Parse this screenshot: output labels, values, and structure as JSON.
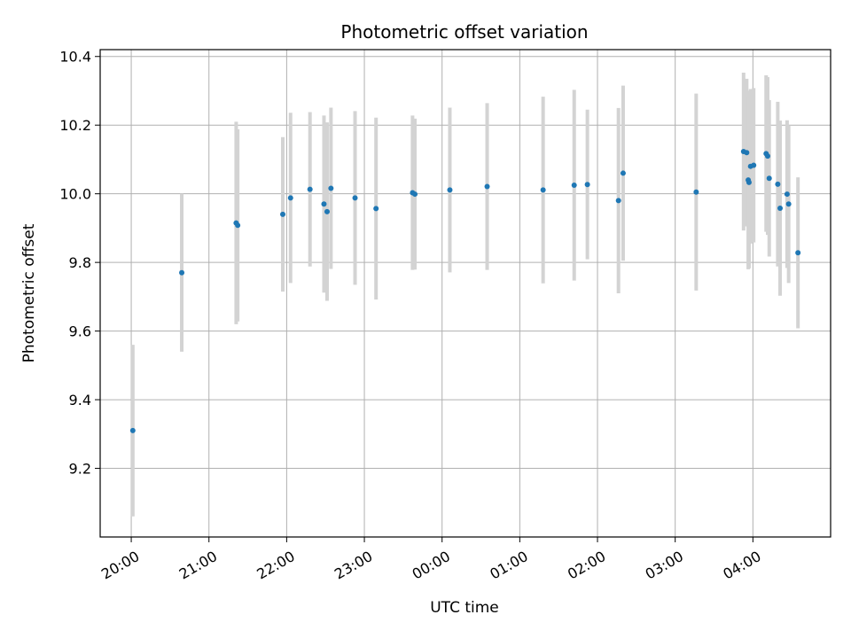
{
  "chart_data": {
    "type": "scatter",
    "title": "Photometric offset variation",
    "xlabel": "UTC time",
    "ylabel": "Photometric offset",
    "x_ticks": [
      "20:00",
      "21:00",
      "22:00",
      "23:00",
      "00:00",
      "01:00",
      "02:00",
      "03:00",
      "04:00"
    ],
    "x_range_hours": [
      19.6,
      29.0
    ],
    "y_ticks": [
      "9.2",
      "9.4",
      "9.6",
      "9.8",
      "10.0",
      "10.2",
      "10.4"
    ],
    "ylim": [
      9.0,
      10.42
    ],
    "grid": true,
    "colors": {
      "point": "#1f77b4",
      "errorbar": "#d3d3d3",
      "grid": "#b0b0b0"
    },
    "series": [
      {
        "points": [
          {
            "x": 20.02,
            "y": 9.31,
            "err": 0.25
          },
          {
            "x": 20.65,
            "y": 9.77,
            "err": 0.23
          },
          {
            "x": 21.35,
            "y": 9.915,
            "err": 0.295
          },
          {
            "x": 21.37,
            "y": 9.908,
            "err": 0.28
          },
          {
            "x": 21.95,
            "y": 9.94,
            "err": 0.225
          },
          {
            "x": 22.05,
            "y": 9.988,
            "err": 0.248
          },
          {
            "x": 22.3,
            "y": 10.013,
            "err": 0.225
          },
          {
            "x": 22.48,
            "y": 9.97,
            "err": 0.258
          },
          {
            "x": 22.52,
            "y": 9.948,
            "err": 0.26
          },
          {
            "x": 22.57,
            "y": 10.016,
            "err": 0.235
          },
          {
            "x": 22.88,
            "y": 9.988,
            "err": 0.253
          },
          {
            "x": 23.15,
            "y": 9.957,
            "err": 0.265
          },
          {
            "x": 23.62,
            "y": 10.003,
            "err": 0.225
          },
          {
            "x": 23.65,
            "y": 9.999,
            "err": 0.22
          },
          {
            "x": 24.1,
            "y": 10.011,
            "err": 0.24
          },
          {
            "x": 24.58,
            "y": 10.021,
            "err": 0.243
          },
          {
            "x": 25.3,
            "y": 10.011,
            "err": 0.272
          },
          {
            "x": 25.7,
            "y": 10.025,
            "err": 0.278
          },
          {
            "x": 25.87,
            "y": 10.027,
            "err": 0.218
          },
          {
            "x": 26.27,
            "y": 9.98,
            "err": 0.27
          },
          {
            "x": 26.33,
            "y": 10.06,
            "err": 0.255
          },
          {
            "x": 27.27,
            "y": 10.005,
            "err": 0.287
          },
          {
            "x": 27.88,
            "y": 10.123,
            "err": 0.23
          },
          {
            "x": 27.92,
            "y": 10.12,
            "err": 0.215
          },
          {
            "x": 27.94,
            "y": 10.04,
            "err": 0.26
          },
          {
            "x": 27.95,
            "y": 10.033,
            "err": 0.25
          },
          {
            "x": 27.97,
            "y": 10.08,
            "err": 0.225
          },
          {
            "x": 28.01,
            "y": 10.083,
            "err": 0.225
          },
          {
            "x": 28.17,
            "y": 10.117,
            "err": 0.228
          },
          {
            "x": 28.19,
            "y": 10.11,
            "err": 0.23
          },
          {
            "x": 28.21,
            "y": 10.045,
            "err": 0.228
          },
          {
            "x": 28.32,
            "y": 10.028,
            "err": 0.24
          },
          {
            "x": 28.35,
            "y": 9.958,
            "err": 0.255
          },
          {
            "x": 28.44,
            "y": 9.999,
            "err": 0.215
          },
          {
            "x": 28.46,
            "y": 9.97,
            "err": 0.23
          },
          {
            "x": 28.58,
            "y": 9.828,
            "err": 0.22
          }
        ]
      }
    ]
  }
}
